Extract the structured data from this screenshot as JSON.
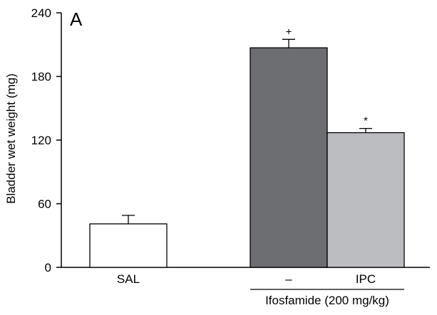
{
  "chart_data": {
    "type": "bar",
    "panel_label": "A",
    "ylabel": "Bladder wet weight (mg)",
    "ylim": [
      0,
      240
    ],
    "yticks": [
      0,
      60,
      120,
      180,
      240
    ],
    "categories": [
      "SAL",
      "–",
      "IPC"
    ],
    "values": [
      41,
      207,
      127
    ],
    "errors": [
      8,
      8,
      4
    ],
    "significance": [
      "",
      "+",
      "*"
    ],
    "bar_colors": [
      "#ffffff",
      "#6d6e72",
      "#bcbdc1"
    ],
    "group_label": "Ifosfamide (200 mg/kg)",
    "group_categories": [
      1,
      2
    ]
  }
}
